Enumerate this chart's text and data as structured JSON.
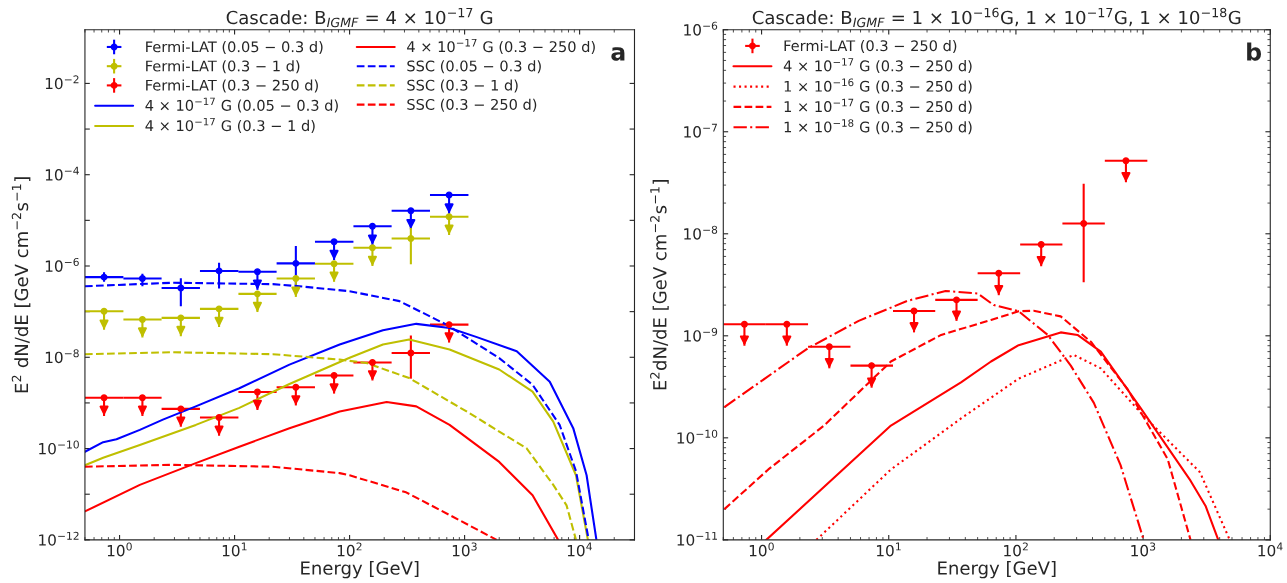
{
  "chart_data": [
    {
      "type": "line",
      "title": "Cascade: B$_{IGMF}$ = 4 × 10$^{−17}$ G",
      "xlabel": "Energy [GeV]",
      "ylabel": "E$^{2}$ dN/dE [GeV cm$^{−2}$s$^{−1}$]",
      "log": "xy",
      "legend": "top left",
      "annotations": [
        "a"
      ],
      "xlim": [
        0.5,
        30000
      ],
      "ylim": [
        1e-12,
        0.15
      ],
      "xticks": [
        {
          "value": 1,
          "label": "10$^{0}$"
        },
        {
          "value": 10,
          "label": "10$^{1}$"
        },
        {
          "value": 100,
          "label": "10$^{2}$"
        },
        {
          "value": 1000,
          "label": "10$^{3}$"
        },
        {
          "value": 10000,
          "label": "10$^{4}$"
        }
      ],
      "yticks": [
        {
          "value": 1e-12,
          "label": "10$^{−12}$"
        },
        {
          "value": 1e-11,
          "label": null
        },
        {
          "value": 1e-10,
          "label": "10$^{−10}$"
        },
        {
          "value": 1e-09,
          "label": null
        },
        {
          "value": 1e-08,
          "label": "10$^{−8}$"
        },
        {
          "value": 1e-07,
          "label": null
        },
        {
          "value": 1e-06,
          "label": "10$^{−6}$"
        },
        {
          "value": 1e-05,
          "label": null
        },
        {
          "value": 0.0001,
          "label": "10$^{−4}$"
        },
        {
          "value": 0.001,
          "label": null
        },
        {
          "value": 0.01,
          "label": "10$^{−2}$"
        }
      ],
      "series": [
        {
          "type": "scatter",
          "name": "Fermi-LAT (0.05 − 0.3 d)",
          "color": "#0000ff",
          "marker": "circle",
          "x": [
            0.733,
            1.58,
            3.41,
            7.33,
            15.8,
            34.1,
            73.3,
            158,
            341,
            733
          ],
          "values": [
            5.7e-07,
            5.3e-07,
            3.3e-07,
            7.8e-07,
            7.5e-07,
            1.14e-06,
            3.4e-06,
            7.4e-06,
            1.62e-05,
            3.6e-05
          ],
          "errors": [
            [
              4.5e-07,
              7.3e-07
            ],
            [
              3.6e-07,
              6.8e-07
            ],
            [
              1.32e-07,
              5.4e-07
            ],
            [
              3.2e-07,
              1.18e-06
            ],
            [
              3e-07,
              7.5e-07
            ],
            [
              3.6e-07,
              2.75e-06
            ],
            [
              1.35e-06,
              3.4e-06
            ],
            [
              2.9e-06,
              7.4e-06
            ],
            [
              6.4e-06,
              1.62e-05
            ],
            [
              1.4e-05,
              3.6e-05
            ]
          ],
          "xerrors": [
            [
              0.5,
              1.08
            ],
            [
              1.08,
              2.32
            ],
            [
              2.32,
              5
            ],
            [
              5,
              10.8
            ],
            [
              10.8,
              23.2
            ],
            [
              23.2,
              50
            ],
            [
              50,
              108
            ],
            [
              108,
              232
            ],
            [
              232,
              500
            ],
            [
              500,
              1080
            ]
          ]
        },
        {
          "type": "scatter",
          "name": "Fermi-LAT (0.3 − 1 d)",
          "color": "#bfbf00",
          "marker": "circle",
          "x": [
            0.733,
            1.58,
            3.41,
            7.33,
            15.8,
            34.1,
            73.3,
            158,
            341,
            733
          ],
          "values": [
            1.02e-07,
            6.7e-08,
            7.3e-08,
            1.15e-07,
            2.45e-07,
            5.3e-07,
            1.12e-06,
            2.5e-06,
            4e-06,
            1.2e-05
          ],
          "errors": [
            [
              4e-08,
              1.02e-07
            ],
            [
              2.7e-08,
              6.7e-08
            ],
            [
              2.9e-08,
              7.3e-08
            ],
            [
              4.6e-08,
              1.15e-07
            ],
            [
              9.8e-08,
              2.45e-07
            ],
            [
              2.1e-07,
              5.3e-07
            ],
            [
              4.5e-07,
              1.12e-06
            ],
            [
              1e-06,
              2.5e-06
            ],
            [
              1.09e-06,
              9e-06
            ],
            [
              4.8e-06,
              1.2e-05
            ]
          ],
          "xerrors": [
            [
              0.5,
              1.08
            ],
            [
              1.08,
              2.32
            ],
            [
              2.32,
              5
            ],
            [
              5,
              10.8
            ],
            [
              10.8,
              23.2
            ],
            [
              23.2,
              50
            ],
            [
              50,
              108
            ],
            [
              108,
              232
            ],
            [
              232,
              500
            ],
            [
              500,
              1080
            ]
          ]
        },
        {
          "type": "scatter",
          "name": "Fermi-LAT (0.3 − 250 d)",
          "color": "#ff0000",
          "marker": "circle",
          "x": [
            0.733,
            1.58,
            3.41,
            7.33,
            15.8,
            34.1,
            73.3,
            158,
            341,
            733
          ],
          "values": [
            1.3e-09,
            1.3e-09,
            7.4e-10,
            4.8e-10,
            1.74e-09,
            2.2e-09,
            4e-09,
            7.7e-09,
            1.24e-08,
            5.2e-08
          ],
          "errors": [
            [
              5.2e-10,
              1.3e-09
            ],
            [
              5.2e-10,
              1.3e-09
            ],
            [
              3e-10,
              7.4e-10
            ],
            [
              1.9e-10,
              4.8e-10
            ],
            [
              7e-10,
              1.74e-09
            ],
            [
              8.8e-10,
              2.2e-09
            ],
            [
              1.6e-09,
              4e-09
            ],
            [
              3.1e-09,
              7.7e-09
            ],
            [
              3.4e-09,
              3e-08
            ],
            [
              2.1e-08,
              5.2e-08
            ]
          ],
          "xerrors": [
            [
              0.5,
              1.08
            ],
            [
              1.08,
              2.32
            ],
            [
              2.32,
              5
            ],
            [
              5,
              10.8
            ],
            [
              10.8,
              23.2
            ],
            [
              23.2,
              50
            ],
            [
              50,
              108
            ],
            [
              108,
              232
            ],
            [
              232,
              500
            ],
            [
              500,
              1080
            ]
          ]
        },
        {
          "name": "4 × 10$^{−17}$ G (0.05 − 0.3 d)",
          "color": "#0000ff",
          "line_style": "solid",
          "x": [
            0.5,
            0.72,
            0.94,
            1.5,
            2.38,
            4.6,
            11,
            30,
            82,
            195,
            380,
            740,
            1260,
            2840,
            5500,
            8800,
            11500,
            14000
          ],
          "values": [
            8.5e-11,
            1.38e-10,
            1.6e-10,
            2.57e-10,
            4.3e-10,
            8.4e-10,
            2.1e-09,
            6.9e-09,
            1.9e-08,
            3.9e-08,
            5.4e-08,
            4.4e-08,
            2.8e-08,
            1.35e-08,
            2.9e-09,
            2.8e-10,
            2.6e-11,
            1e-12
          ]
        },
        {
          "name": "4 × 10$^{−17}$ G (0.3 − 1 d)",
          "color": "#bfbf00",
          "line_style": "solid",
          "x": [
            0.5,
            0.72,
            1.5,
            4.6,
            11,
            30,
            100,
            195,
            330,
            740,
            2000,
            3900,
            5900,
            9300,
            11800
          ],
          "values": [
            4.3e-11,
            6.3e-11,
            1.2e-10,
            3.3e-10,
            7.8e-10,
            2.6e-09,
            9.8e-09,
            1.9e-08,
            2.45e-08,
            1.48e-08,
            5.4e-09,
            1.77e-09,
            3.9e-10,
            2.6e-11,
            1e-12
          ]
        },
        {
          "name": "4 × 10$^{−17}$ G (0.3 − 250 d)",
          "color": "#ff0000",
          "line_style": "solid",
          "x": [
            0.5,
            1.5,
            4.6,
            11,
            30,
            82,
            210,
            380,
            740,
            2000,
            3900,
            6500
          ],
          "values": [
            4.2e-12,
            1.6e-11,
            4.8e-11,
            1.1e-10,
            2.8e-10,
            6.5e-10,
            1.05e-09,
            8.4e-10,
            3.3e-10,
            5.1e-11,
            9.5e-12,
            1e-12
          ]
        },
        {
          "name": "SSC (0.05 − 0.3 d)",
          "color": "#0000ff",
          "line_style": "dashed",
          "x": [
            0.5,
            2.9,
            21.5,
            36.7,
            100,
            271,
            695,
            2000,
            3900,
            6700,
            9300,
            12000
          ],
          "values": [
            3.6e-07,
            4.3e-07,
            4e-07,
            3.6e-07,
            2.8e-07,
            1.7e-07,
            5.2e-08,
            9.6e-09,
            2.5e-09,
            3.3e-10,
            3.2e-11,
            1e-12
          ]
        },
        {
          "name": "SSC (0.3 − 1 d)",
          "color": "#bfbf00",
          "line_style": "dashed",
          "x": [
            0.5,
            2.9,
            21.5,
            82,
            140,
            330,
            1040,
            3450,
            5900,
            7700,
            9300
          ],
          "values": [
            1.17e-08,
            1.29e-08,
            1.17e-08,
            8.9e-09,
            7.5e-09,
            3.5e-09,
            6.5e-10,
            1.02e-10,
            1.6e-11,
            5.7e-12,
            1e-12
          ]
        },
        {
          "name": "SSC (0.3 − 250 d)",
          "color": "#ff0000",
          "line_style": "dashed",
          "x": [
            0.5,
            2.9,
            21.5,
            82,
            100,
            310,
            740,
            1900
          ],
          "values": [
            4e-11,
            4.4e-11,
            4e-11,
            2.9e-11,
            2.6e-11,
            1.1e-11,
            3.5e-12,
            1e-12
          ]
        }
      ]
    },
    {
      "type": "line",
      "title": "Cascade: B$_{IGMF}$ = 1 × 10$^{−16}$G, 1 × 10$^{−17}$G, 1 × 10$^{−18}$G",
      "xlabel": "Energy [GeV]",
      "ylabel": "E$^{2}$dN/dE [GeV cm$^{−2}$s$^{−1}$]",
      "log": "xy",
      "legend": "top left",
      "annotations": [
        "b"
      ],
      "xlim": [
        0.5,
        10000
      ],
      "ylim": [
        1e-11,
        1e-06
      ],
      "xticks": [
        {
          "value": 1,
          "label": "10$^{0}$"
        },
        {
          "value": 10,
          "label": "10$^{1}$"
        },
        {
          "value": 100,
          "label": "10$^{2}$"
        },
        {
          "value": 1000,
          "label": "10$^{3}$"
        },
        {
          "value": 10000,
          "label": "10$^{4}$"
        }
      ],
      "yticks": [
        {
          "value": 1e-11,
          "label": "10$^{−11}$"
        },
        {
          "value": 1e-10,
          "label": "10$^{−10}$"
        },
        {
          "value": 1e-09,
          "label": "10$^{−9}$"
        },
        {
          "value": 1e-08,
          "label": "10$^{−8}$"
        },
        {
          "value": 1e-07,
          "label": "10$^{−7}$"
        },
        {
          "value": 1e-06,
          "label": "10$^{−6}$"
        }
      ],
      "series": [
        {
          "type": "scatter",
          "name": "Fermi-LAT (0.3 − 250 d)",
          "color": "#ff0000",
          "marker": "circle",
          "x": [
            0.733,
            1.58,
            3.41,
            7.33,
            15.8,
            34.1,
            73.3,
            158,
            341,
            733
          ],
          "values": [
            1.3e-09,
            1.3e-09,
            7.8e-10,
            5.1e-10,
            1.75e-09,
            2.25e-09,
            4.1e-09,
            7.85e-09,
            1.26e-08,
            5.2e-08
          ],
          "errors": [
            [
              8e-10,
              1.3e-09
            ],
            [
              8e-10,
              1.3e-09
            ],
            [
              4.8e-10,
              7.8e-10
            ],
            [
              3.1e-10,
              5.1e-10
            ],
            [
              1.08e-09,
              1.75e-09
            ],
            [
              1.4e-09,
              2.25e-09
            ],
            [
              2.5e-09,
              4.1e-09
            ],
            [
              4.8e-09,
              7.85e-09
            ],
            [
              3.34e-09,
              3.1e-08
            ],
            [
              3.2e-08,
              5.2e-08
            ]
          ],
          "xerrors": [
            [
              0.5,
              1.08
            ],
            [
              1.08,
              2.32
            ],
            [
              2.32,
              5
            ],
            [
              5,
              10.8
            ],
            [
              10.8,
              23.2
            ],
            [
              23.2,
              50
            ],
            [
              50,
              108
            ],
            [
              108,
              232
            ],
            [
              232,
              500
            ],
            [
              500,
              1080
            ]
          ]
        },
        {
          "name": "4 × 10$^{−17}$ G (0.3 − 250 d)",
          "color": "#ff0000",
          "line_style": "solid",
          "x": [
            1.09,
            10.4,
            37,
            63.7,
            105,
            225,
            305,
            465,
            960,
            2360,
            3100,
            3900
          ],
          "values": [
            1e-11,
            1.32e-10,
            3.5e-10,
            5.6e-10,
            8.1e-10,
            1.08e-09,
            1.02e-09,
            7e-10,
            1.94e-10,
            3.8e-11,
            2.15e-11,
            1e-11
          ]
        },
        {
          "name": "1 × 10$^{−16}$ G (0.3 − 250 d)",
          "color": "#ff0000",
          "line_style": "dotted",
          "x": [
            2.7,
            10.4,
            37,
            105,
            285,
            465,
            1000,
            2800,
            4800
          ],
          "values": [
            1e-11,
            4.9e-11,
            1.55e-10,
            3.8e-10,
            6.5e-10,
            4.8e-10,
            1.66e-10,
            4.6e-11,
            1e-11
          ]
        },
        {
          "name": "1 × 10$^{−17}$ G (0.3 − 250 d)",
          "color": "#ff0000",
          "line_style": "dashed",
          "x": [
            0.51,
            1.13,
            3.1,
            10.4,
            25.8,
            63.7,
            105,
            138,
            225,
            390,
            755,
            1560,
            2360
          ],
          "values": [
            2e-11,
            4.9e-11,
            1.32e-10,
            5.6e-10,
            1.02e-09,
            1.43e-09,
            1.74e-09,
            1.76e-09,
            1.55e-09,
            8.7e-10,
            3e-10,
            6.2e-11,
            1e-11
          ]
        },
        {
          "name": "1 × 10$^{−18}$ G (0.3 − 250 d)",
          "color": "#ff0000",
          "line_style": "dashdot",
          "x": [
            0.51,
            2.33,
            5.8,
            14,
            28,
            50,
            67,
            105,
            178,
            270,
            410,
            665,
            1010
          ],
          "values": [
            2e-10,
            7.6e-10,
            1.4e-09,
            2.2e-09,
            2.75e-09,
            2.6e-09,
            2e-09,
            1.74e-09,
            1.02e-09,
            5.1e-10,
            2.2e-10,
            5.4e-11,
            1e-11
          ]
        }
      ]
    }
  ]
}
